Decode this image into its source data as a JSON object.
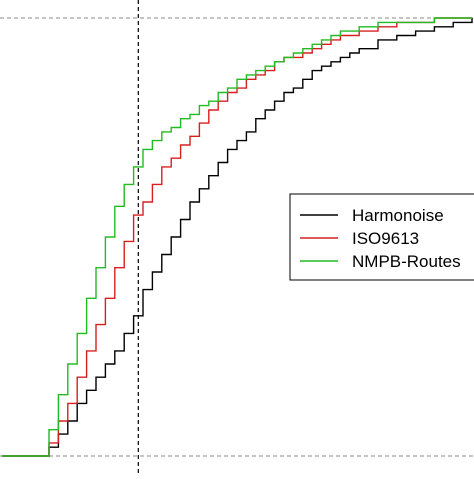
{
  "chart_data": {
    "type": "line",
    "title": "",
    "xlabel": "",
    "ylabel": "",
    "xlim": [
      0.0,
      1.0
    ],
    "ylim": [
      0.0,
      1.0
    ],
    "grid": false,
    "reference_lines": {
      "horizontal": [
        0.0,
        1.0
      ],
      "vertical": [
        0.29
      ]
    },
    "legend": {
      "placement": "center-right"
    },
    "series": [
      {
        "name": "Harmonoise",
        "color": "#000000",
        "x": [
          0.0,
          0.09,
          0.1,
          0.12,
          0.14,
          0.16,
          0.18,
          0.2,
          0.22,
          0.24,
          0.26,
          0.28,
          0.3,
          0.32,
          0.34,
          0.36,
          0.38,
          0.4,
          0.42,
          0.44,
          0.46,
          0.48,
          0.5,
          0.52,
          0.54,
          0.56,
          0.58,
          0.6,
          0.62,
          0.64,
          0.66,
          0.68,
          0.7,
          0.72,
          0.74,
          0.76,
          0.8,
          0.84,
          0.88,
          0.92,
          0.96,
          1.0
        ],
        "y": [
          0.0,
          0.0,
          0.02,
          0.05,
          0.08,
          0.12,
          0.15,
          0.18,
          0.21,
          0.24,
          0.28,
          0.32,
          0.38,
          0.42,
          0.46,
          0.5,
          0.54,
          0.58,
          0.61,
          0.64,
          0.67,
          0.7,
          0.72,
          0.74,
          0.77,
          0.79,
          0.81,
          0.83,
          0.84,
          0.86,
          0.88,
          0.89,
          0.9,
          0.91,
          0.92,
          0.93,
          0.95,
          0.96,
          0.97,
          0.98,
          0.99,
          1.0
        ]
      },
      {
        "name": "ISO9613",
        "color": "#d62020",
        "x": [
          0.0,
          0.09,
          0.1,
          0.12,
          0.14,
          0.16,
          0.18,
          0.2,
          0.22,
          0.24,
          0.26,
          0.28,
          0.3,
          0.32,
          0.34,
          0.36,
          0.38,
          0.4,
          0.42,
          0.44,
          0.46,
          0.48,
          0.5,
          0.52,
          0.54,
          0.56,
          0.58,
          0.6,
          0.62,
          0.64,
          0.66,
          0.68,
          0.7,
          0.72,
          0.74,
          0.76,
          0.8,
          0.84,
          0.88,
          0.92,
          0.96,
          1.0
        ],
        "y": [
          0.0,
          0.0,
          0.03,
          0.08,
          0.12,
          0.18,
          0.24,
          0.3,
          0.36,
          0.43,
          0.49,
          0.55,
          0.58,
          0.62,
          0.66,
          0.68,
          0.71,
          0.73,
          0.76,
          0.79,
          0.81,
          0.83,
          0.84,
          0.86,
          0.87,
          0.88,
          0.9,
          0.91,
          0.91,
          0.92,
          0.93,
          0.94,
          0.95,
          0.96,
          0.96,
          0.97,
          0.98,
          0.99,
          0.99,
          1.0,
          1.0,
          1.0
        ]
      },
      {
        "name": "NMPB-Routes",
        "color": "#22bb22",
        "x": [
          0.0,
          0.09,
          0.1,
          0.12,
          0.14,
          0.16,
          0.18,
          0.2,
          0.22,
          0.24,
          0.26,
          0.28,
          0.3,
          0.32,
          0.34,
          0.36,
          0.38,
          0.4,
          0.42,
          0.44,
          0.46,
          0.48,
          0.5,
          0.52,
          0.54,
          0.56,
          0.58,
          0.6,
          0.62,
          0.64,
          0.66,
          0.68,
          0.7,
          0.72,
          0.74,
          0.76,
          0.8,
          0.84,
          0.88,
          0.92,
          0.96,
          1.0
        ],
        "y": [
          0.0,
          0.0,
          0.06,
          0.14,
          0.21,
          0.28,
          0.36,
          0.43,
          0.5,
          0.57,
          0.62,
          0.66,
          0.7,
          0.72,
          0.74,
          0.75,
          0.77,
          0.78,
          0.8,
          0.81,
          0.83,
          0.84,
          0.86,
          0.87,
          0.88,
          0.89,
          0.9,
          0.91,
          0.92,
          0.93,
          0.94,
          0.95,
          0.96,
          0.97,
          0.97,
          0.98,
          0.99,
          0.99,
          0.99,
          1.0,
          1.0,
          1.0
        ]
      }
    ]
  }
}
